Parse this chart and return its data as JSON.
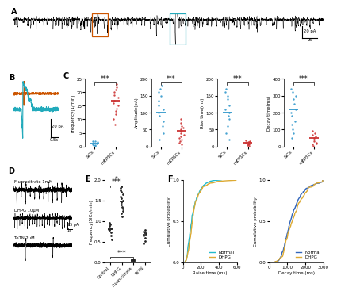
{
  "panel_C": {
    "subpanels": [
      {
        "ylabel": "Frequency(1/min)",
        "ylim": [
          0,
          25
        ],
        "yticks": [
          0,
          5,
          10,
          15,
          20,
          25
        ],
        "xticklabels": [
          "SICs",
          "mEPSCs"
        ],
        "sics_mean": 1.0,
        "mepscs_mean": 17.0,
        "sics_data": [
          0.2,
          0.4,
          0.5,
          0.8,
          1.0,
          1.2,
          1.5,
          1.8,
          2.0
        ],
        "mepscs_data": [
          8,
          10,
          12,
          13,
          14,
          15,
          16,
          17,
          18,
          19,
          20,
          21,
          22,
          23
        ],
        "sics_color": "#3399CC",
        "mepscs_color": "#CC3333"
      },
      {
        "ylabel": "Amplitude(pA)",
        "ylim": [
          0,
          200
        ],
        "yticks": [
          0,
          50,
          100,
          150,
          200
        ],
        "xticklabels": [
          "SICs",
          "mEPSCs"
        ],
        "sics_mean": 100,
        "mepscs_mean": 47,
        "sics_data": [
          20,
          40,
          60,
          75,
          90,
          100,
          110,
          120,
          135,
          150,
          160,
          170,
          180
        ],
        "mepscs_data": [
          5,
          10,
          15,
          20,
          25,
          30,
          35,
          40,
          45,
          50,
          55,
          60,
          70,
          80
        ],
        "sics_color": "#3399CC",
        "mepscs_color": "#CC3333"
      },
      {
        "ylabel": "Rise time(ms)",
        "ylim": [
          0,
          200
        ],
        "yticks": [
          0,
          50,
          100,
          150,
          200
        ],
        "xticklabels": [
          "SICs",
          "mEPSCs"
        ],
        "sics_mean": 100,
        "mepscs_mean": 10,
        "sics_data": [
          20,
          40,
          60,
          80,
          90,
          100,
          110,
          120,
          140,
          150,
          160,
          170
        ],
        "mepscs_data": [
          2,
          4,
          5,
          6,
          8,
          10,
          12,
          14,
          16,
          18
        ],
        "sics_color": "#3399CC",
        "mepscs_color": "#CC3333"
      },
      {
        "ylabel": "Decay time(ms)",
        "ylim": [
          0,
          400
        ],
        "yticks": [
          0,
          100,
          200,
          300,
          400
        ],
        "xticklabels": [
          "SICs",
          "mEPSCs"
        ],
        "sics_mean": 220,
        "mepscs_mean": 50,
        "sics_data": [
          50,
          80,
          100,
          130,
          150,
          180,
          200,
          220,
          250,
          280,
          300,
          320,
          340
        ],
        "mepscs_data": [
          5,
          10,
          15,
          20,
          30,
          40,
          50,
          60,
          70,
          80,
          90
        ],
        "sics_color": "#3399CC",
        "mepscs_color": "#CC3333"
      }
    ]
  },
  "panel_D_labels": [
    "Fluorocitrate 1mM",
    "DHPG 10μM",
    "TeTN 2μM"
  ],
  "panel_E": {
    "ylabel": "Frequency(SICs/min)",
    "ylim": [
      0.0,
      2.0
    ],
    "yticks": [
      0.0,
      0.5,
      1.0,
      1.5,
      2.0
    ],
    "xticklabels": [
      "Control",
      "DHPG",
      "Fluorocitrate",
      "TeTN"
    ],
    "means": [
      0.8,
      1.47,
      0.05,
      0.67
    ],
    "data": {
      "Control": [
        0.55,
        0.65,
        0.72,
        0.78,
        0.8,
        0.82,
        0.88,
        0.92,
        0.95
      ],
      "DHPG": [
        1.1,
        1.18,
        1.25,
        1.3,
        1.35,
        1.4,
        1.45,
        1.5,
        1.55,
        1.6,
        1.65,
        1.7,
        1.75,
        1.8,
        1.85
      ],
      "Fluorocitrate": [
        0.02,
        0.03,
        0.04,
        0.05,
        0.06
      ],
      "TeTN": [
        0.45,
        0.52,
        0.58,
        0.65,
        0.7,
        0.72,
        0.75,
        0.78
      ]
    }
  },
  "panel_F_raise": {
    "xlabel": "Raise time (ms)",
    "ylabel": "Cumulative probability",
    "xlim": [
      0,
      600
    ],
    "ylim": [
      0.0,
      1.0
    ],
    "xticks": [
      0,
      200,
      400,
      600
    ],
    "yticks": [
      0.0,
      0.5,
      1.0
    ],
    "normal_color": "#22BBCC",
    "dhpg_color": "#DDAA33",
    "legend": [
      "Normal",
      "DHPG"
    ]
  },
  "panel_F_decay": {
    "xlabel": "Decay time (ms)",
    "ylabel": "Cumulative probability",
    "xlim": [
      0,
      3000
    ],
    "ylim": [
      0.0,
      1.0
    ],
    "xticks": [
      0,
      1000,
      2000,
      3000
    ],
    "yticks": [
      0.0,
      0.5,
      1.0
    ],
    "normal_color": "#3366BB",
    "dhpg_color": "#DDAA33",
    "legend": [
      "Normal",
      "DHPG"
    ]
  },
  "bg_color": "#ffffff",
  "label_fontsize": 7,
  "tick_fontsize": 5,
  "orange_color": "#CC5500",
  "blue_color": "#22AABB"
}
